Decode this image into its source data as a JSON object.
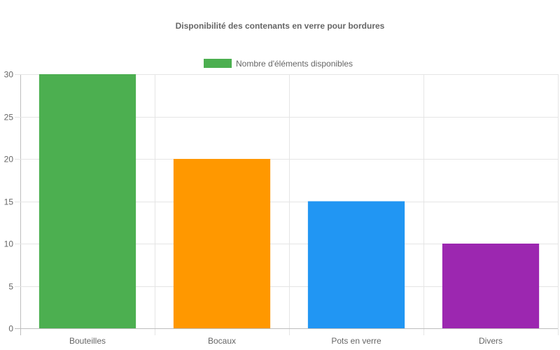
{
  "chart_data": {
    "type": "bar",
    "title": "Disponibilité des contenants en verre pour bordures",
    "categories": [
      "Bouteilles",
      "Bocaux",
      "Pots en verre",
      "Divers"
    ],
    "series": [
      {
        "name": "Nombre d'éléments disponibles",
        "values": [
          30,
          20,
          15,
          10
        ],
        "colors": [
          "#4caf50",
          "#ff9800",
          "#2196f3",
          "#9c27b0"
        ]
      }
    ],
    "legend_color": "#4caf50",
    "ylim": [
      0,
      30
    ],
    "yticks": [
      0,
      5,
      10,
      15,
      20,
      25,
      30
    ],
    "xlabel": "",
    "ylabel": "",
    "grid": true,
    "legend_position": "top"
  }
}
